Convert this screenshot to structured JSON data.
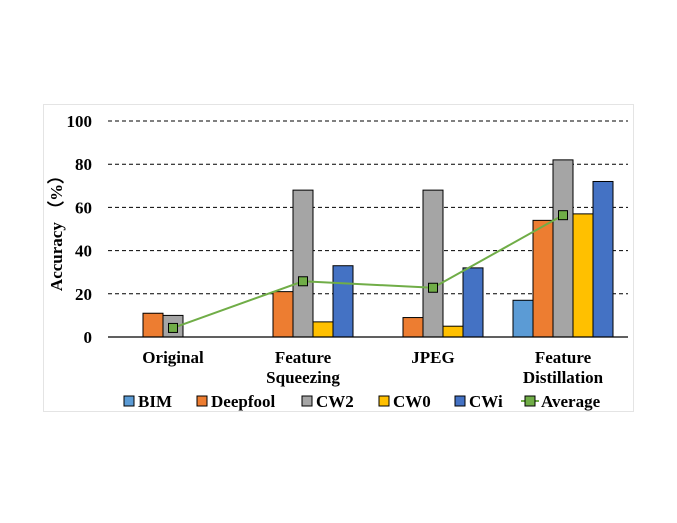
{
  "chart_data": {
    "type": "bar",
    "categories": [
      [
        "Original"
      ],
      [
        "Feature",
        "Squeezing"
      ],
      [
        "JPEG"
      ],
      [
        "Feature",
        "Distillation"
      ]
    ],
    "series": [
      {
        "name": "BIM",
        "color": "#5b9bd5",
        "values": [
          0,
          0,
          0,
          17
        ]
      },
      {
        "name": "Deepfool",
        "color": "#ed7d31",
        "values": [
          11,
          21,
          9,
          54
        ]
      },
      {
        "name": "CW2",
        "color": "#a5a5a5",
        "values": [
          10,
          68,
          68,
          82
        ]
      },
      {
        "name": "CW0",
        "color": "#ffc000",
        "values": [
          0,
          7,
          5,
          57
        ]
      },
      {
        "name": "CWi",
        "color": "#4472c4",
        "values": [
          0,
          33,
          32,
          72
        ]
      }
    ],
    "line_series": {
      "name": "Average",
      "color": "#70ad47",
      "values": [
        4.2,
        25.8,
        22.8,
        56.4
      ]
    },
    "ylabel": "Accuracy （%）",
    "ylim": [
      0,
      100
    ],
    "yticks": [
      0,
      20,
      40,
      60,
      80,
      100
    ],
    "grid": "dashed horizontal",
    "legend": "bottom"
  }
}
